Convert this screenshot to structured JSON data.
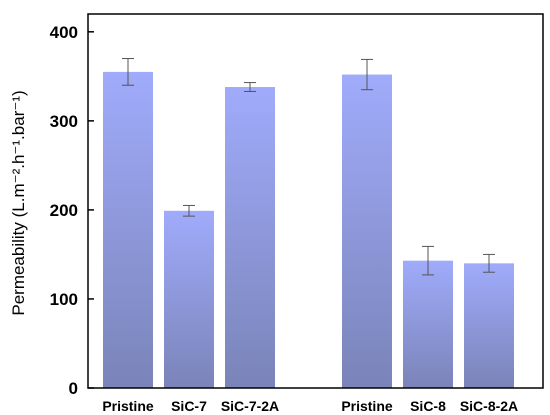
{
  "chart_data": {
    "type": "bar",
    "title": "",
    "xlabel": "",
    "ylabel": "Permeability (L.m⁻².h⁻¹.bar⁻¹)",
    "ylim": [
      0,
      420
    ],
    "yticks": [
      0,
      100,
      200,
      300,
      400
    ],
    "grid": false,
    "legend": "none",
    "bar_color_top": "#a0abfb",
    "bar_color_bottom": "#7a84b8",
    "groups": [
      {
        "categories": [
          "Pristine",
          "SiC-7",
          "SiC-7-2A"
        ],
        "values": [
          355,
          199,
          338
        ],
        "errors": [
          15,
          6,
          5
        ]
      },
      {
        "categories": [
          "Pristine",
          "SiC-8",
          "SiC-8-2A"
        ],
        "values": [
          352,
          143,
          140
        ],
        "errors": [
          17,
          16,
          10
        ]
      }
    ]
  }
}
